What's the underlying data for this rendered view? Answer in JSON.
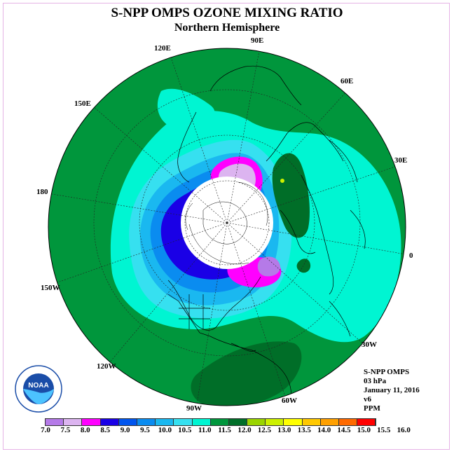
{
  "title": "S-NPP OMPS OZONE MIXING RATIO",
  "subtitle": "Northern Hemisphere",
  "longitude_labels": [
    "90E",
    "60E",
    "30E",
    "0",
    "30W",
    "60W",
    "90W",
    "120W",
    "150W",
    "180",
    "150E",
    "120E"
  ],
  "info": {
    "instrument": "S-NPP OMPS",
    "level": "03 hPa",
    "date": "January 11, 2016",
    "version": "v6",
    "units": "PPM"
  },
  "colorbar": {
    "ticks": [
      "7.0",
      "7.5",
      "8.0",
      "8.5",
      "9.0",
      "9.5",
      "10.0",
      "10.5",
      "11.0",
      "11.5",
      "12.0",
      "12.5",
      "13.0",
      "13.5",
      "14.0",
      "14.5",
      "15.0",
      "15.5",
      "16.0"
    ],
    "colors": [
      "#b57ae8",
      "#dcb4f0",
      "#ff00ff",
      "#1a00e6",
      "#0055ee",
      "#0a8cf0",
      "#1ab8f0",
      "#36e0f0",
      "#00f5d2",
      "#00963c",
      "#006e28",
      "#9ad400",
      "#ccf000",
      "#ffff00",
      "#ffc800",
      "#ffa000",
      "#ff6a00",
      "#ff0000",
      "#8b4a32"
    ]
  },
  "logo_text": "NOAA"
}
